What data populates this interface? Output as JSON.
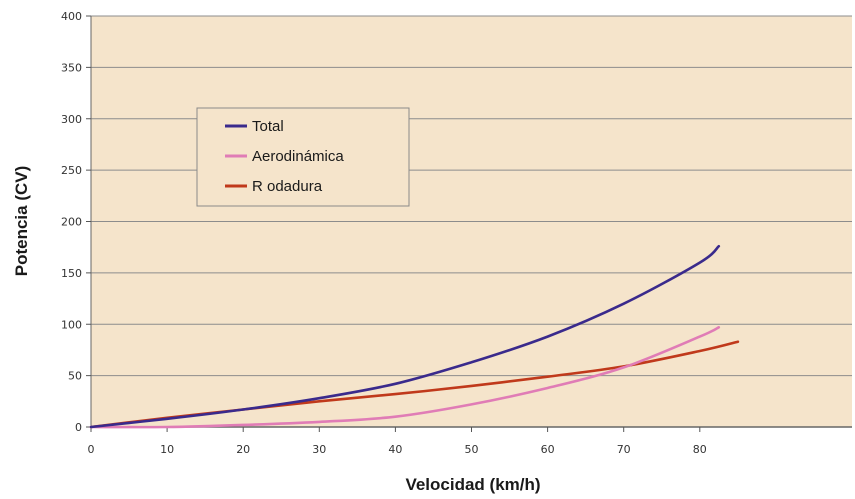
{
  "chart_data": {
    "type": "line",
    "title": "",
    "xlabel": "Velocidad (km/h)",
    "ylabel": "Potencia (CV)",
    "xlim": [
      0,
      100
    ],
    "ylim": [
      0,
      400
    ],
    "x_ticks": [
      "0",
      "10",
      "20",
      "30",
      "40",
      "50",
      "60",
      "70",
      "80"
    ],
    "y_ticks": [
      "0",
      "50",
      "100",
      "150",
      "200",
      "250",
      "300",
      "350",
      "400"
    ],
    "grid": "horizontal",
    "legend_position": "top-left",
    "colors": {
      "plot_background": "#f5e4cb",
      "legend_background": "#f5e4cb",
      "gridline": "#8c8c8c"
    },
    "series": [
      {
        "name": "Total",
        "color": "#3a2a8c",
        "x": [
          0,
          10,
          20,
          30,
          40,
          50,
          60,
          70,
          80,
          82.5
        ],
        "y": [
          0,
          8,
          17,
          28,
          42,
          63,
          88,
          120,
          160,
          176
        ]
      },
      {
        "name": "Aerodinámica",
        "color": "#e07cb6",
        "x": [
          0,
          10,
          20,
          30,
          40,
          50,
          60,
          70,
          80,
          82.5
        ],
        "y": [
          0,
          0,
          2,
          5,
          10,
          22,
          38,
          58,
          88,
          97
        ]
      },
      {
        "name": "R odadura",
        "color": "#c0391b",
        "x": [
          0,
          10,
          20,
          30,
          40,
          50,
          60,
          70,
          80,
          85
        ],
        "y": [
          0,
          9,
          17,
          25,
          32,
          40,
          49,
          59,
          74,
          83
        ]
      }
    ]
  }
}
